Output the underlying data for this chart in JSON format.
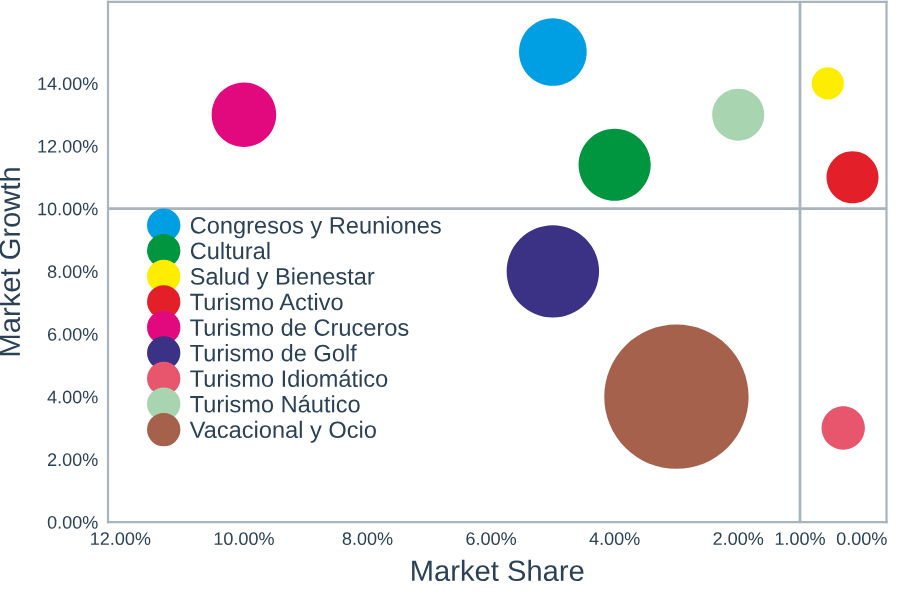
{
  "chart_data": {
    "type": "bubble",
    "xlabel": "Market Share",
    "ylabel": "Market Growth",
    "xlim": [
      12.2,
      -0.4
    ],
    "ylim": [
      0,
      16.6
    ],
    "xticks": [
      {
        "value": 12,
        "label": "12.00%"
      },
      {
        "value": 10,
        "label": "10.00%"
      },
      {
        "value": 8,
        "label": "8.00%"
      },
      {
        "value": 6,
        "label": "6.00%"
      },
      {
        "value": 4,
        "label": "4.00%"
      },
      {
        "value": 2,
        "label": "2.00%"
      },
      {
        "value": 1,
        "label": "1.00%"
      },
      {
        "value": 0,
        "label": "0.00%"
      }
    ],
    "yticks": [
      {
        "value": 0,
        "label": "0.00%"
      },
      {
        "value": 2,
        "label": "2.00%"
      },
      {
        "value": 4,
        "label": "4.00%"
      },
      {
        "value": 6,
        "label": "6.00%"
      },
      {
        "value": 8,
        "label": "8.00%"
      },
      {
        "value": 10,
        "label": "10.00%"
      },
      {
        "value": 12,
        "label": "12.00%"
      },
      {
        "value": 14,
        "label": "14.00%"
      }
    ],
    "ref_lines": [
      {
        "axis": "x",
        "value": 1,
        "color": "#a9b4bd"
      },
      {
        "axis": "y",
        "value": 10,
        "color": "#a9b4bd"
      }
    ],
    "legend": "left",
    "series": [
      {
        "name": "Congresos y Reuniones",
        "color": "#009fe3",
        "x": [
          5
        ],
        "values": [
          15
        ],
        "sizes": [
          0.22
        ]
      },
      {
        "name": "Cultural",
        "color": "#009640",
        "x": [
          4
        ],
        "values": [
          11.4
        ],
        "sizes": [
          0.25
        ]
      },
      {
        "name": "Salud y Bienestar",
        "color": "#ffed00",
        "x": [
          0.55
        ],
        "values": [
          14
        ],
        "sizes": [
          0.05
        ]
      },
      {
        "name": "Turismo Activo",
        "color": "#e3202a",
        "x": [
          0.15
        ],
        "values": [
          11
        ],
        "sizes": [
          0.13
        ]
      },
      {
        "name": "Turismo de Cruceros",
        "color": "#e2097f",
        "x": [
          10
        ],
        "values": [
          13
        ],
        "sizes": [
          0.2
        ]
      },
      {
        "name": "Turismo de Golf",
        "color": "#3b3286",
        "x": [
          5
        ],
        "values": [
          8
        ],
        "sizes": [
          0.41
        ]
      },
      {
        "name": "Turismo Idiomático",
        "color": "#e8566e",
        "x": [
          0.3
        ],
        "values": [
          3
        ],
        "sizes": [
          0.09
        ]
      },
      {
        "name": "Turismo Náutico",
        "color": "#a8d5b0",
        "x": [
          2
        ],
        "values": [
          13
        ],
        "sizes": [
          0.13
        ]
      },
      {
        "name": "Vacacional y Ocio",
        "color": "#a5614b",
        "x": [
          3
        ],
        "values": [
          4
        ],
        "sizes": [
          1
        ]
      }
    ]
  }
}
